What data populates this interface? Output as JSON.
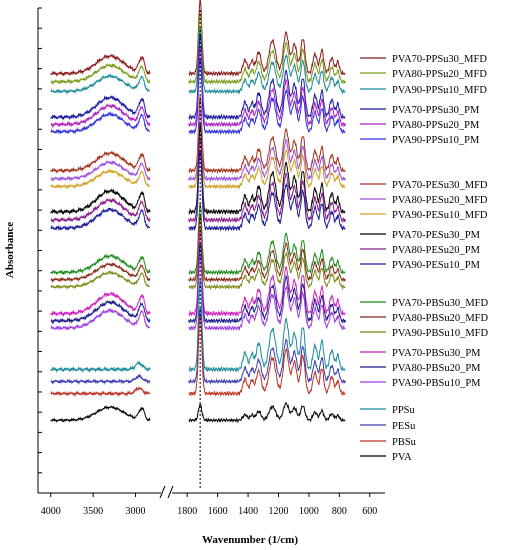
{
  "chart_data": {
    "type": "line",
    "xlabel": "Wavenumber (1/cm)",
    "ylabel": "Absorbance",
    "x_ticks_left": [
      4000,
      3500,
      3000
    ],
    "x_ticks_right": [
      1800,
      1600,
      1400,
      1200,
      1000,
      800,
      600
    ],
    "x_range_left": [
      4150,
      2700
    ],
    "x_range_right": [
      1900,
      500
    ],
    "reference_line_x": 1715,
    "grid": false,
    "legend_placement": "right, grouped beside traces",
    "series": [
      {
        "name": "PVA70-PPSu30_MFD",
        "color": "#8b1a1a",
        "offset": 0.865,
        "amp": 0.08,
        "kind": "blend",
        "variant": 0
      },
      {
        "name": "PVA80-PPSu20_MFD",
        "color": "#7a9a1a",
        "offset": 0.848,
        "amp": 0.075,
        "kind": "blend",
        "variant": 1
      },
      {
        "name": "PVA90-PPSu10_MFD",
        "color": "#1a8a9a",
        "offset": 0.828,
        "amp": 0.07,
        "kind": "blend",
        "variant": 2
      },
      {
        "name": "PVA70-PPSu30_PM",
        "color": "#1a1aa0",
        "offset": 0.775,
        "amp": 0.09,
        "kind": "pm",
        "variant": 0
      },
      {
        "name": "PVA80-PPSu20_PM",
        "color": "#b020c0",
        "offset": 0.76,
        "amp": 0.085,
        "kind": "pm",
        "variant": 1
      },
      {
        "name": "PVA90-PPSu10_PM",
        "color": "#3030e0",
        "offset": 0.745,
        "amp": 0.08,
        "kind": "pm",
        "variant": 2
      },
      {
        "name": "PVA70-PESu30_MFD",
        "color": "#a03018",
        "offset": 0.665,
        "amp": 0.08,
        "kind": "blend",
        "variant": 0
      },
      {
        "name": "PVA80-PESu20_MFD",
        "color": "#9a50e0",
        "offset": 0.648,
        "amp": 0.075,
        "kind": "blend",
        "variant": 1
      },
      {
        "name": "PVA90-PESu10_MFD",
        "color": "#d0a020",
        "offset": 0.632,
        "amp": 0.07,
        "kind": "blend",
        "variant": 2
      },
      {
        "name": "PVA70-PESu30_PM",
        "color": "#000000",
        "offset": 0.58,
        "amp": 0.095,
        "kind": "pm",
        "variant": 0
      },
      {
        "name": "PVA80-PESu20_PM",
        "color": "#8a1a8a",
        "offset": 0.563,
        "amp": 0.09,
        "kind": "pm",
        "variant": 1
      },
      {
        "name": "PVA90-PESu10_PM",
        "color": "#1a1a9a",
        "offset": 0.546,
        "amp": 0.085,
        "kind": "pm",
        "variant": 2
      },
      {
        "name": "PVA70-PBSu30_MFD",
        "color": "#1a8a1a",
        "offset": 0.455,
        "amp": 0.075,
        "kind": "blend",
        "variant": 0
      },
      {
        "name": "PVA80-PBSu20_MFD",
        "color": "#8a2a1a",
        "offset": 0.44,
        "amp": 0.07,
        "kind": "blend",
        "variant": 1
      },
      {
        "name": "PVA90-PBSu10_MFD",
        "color": "#7a8a1a",
        "offset": 0.425,
        "amp": 0.065,
        "kind": "blend",
        "variant": 2
      },
      {
        "name": "PVA70-PBSu30_PM",
        "color": "#d020c0",
        "offset": 0.37,
        "amp": 0.09,
        "kind": "pm",
        "variant": 0
      },
      {
        "name": "PVA80-PBSu20_PM",
        "color": "#1a1a8a",
        "offset": 0.355,
        "amp": 0.085,
        "kind": "pm",
        "variant": 1
      },
      {
        "name": "PVA90-PBSu10_PM",
        "color": "#a040e0",
        "offset": 0.34,
        "amp": 0.08,
        "kind": "pm",
        "variant": 2
      },
      {
        "name": "PPSu",
        "color": "#1a8a9a",
        "offset": 0.255,
        "amp": 0.085,
        "kind": "polyester",
        "variant": 0
      },
      {
        "name": "PESu",
        "color": "#3a3ab0",
        "offset": 0.23,
        "amp": 0.07,
        "kind": "polyester",
        "variant": 1
      },
      {
        "name": "PBSu",
        "color": "#c03020",
        "offset": 0.205,
        "amp": 0.075,
        "kind": "polyester",
        "variant": 2
      },
      {
        "name": "PVA",
        "color": "#000000",
        "offset": 0.15,
        "amp": 0.06,
        "kind": "pva",
        "variant": 0
      }
    ]
  }
}
